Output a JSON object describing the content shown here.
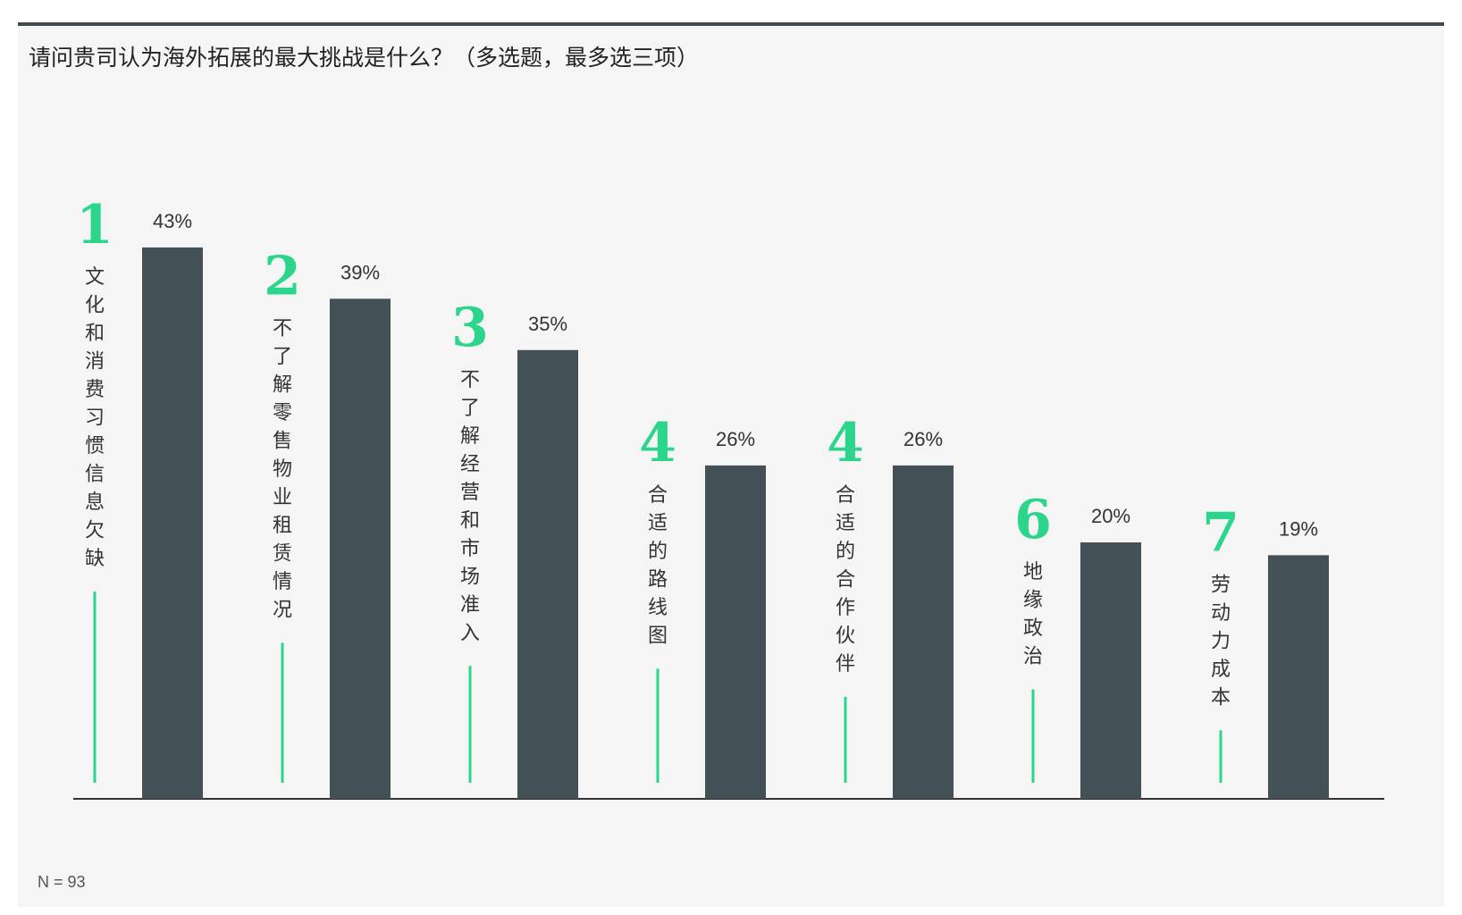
{
  "title": "请问贵司认为海外拓展的最大挑战是什么？（多选题，最多选三项）",
  "note": "N = 93",
  "colors": {
    "bar": "#435055",
    "accent": "#2bd68c",
    "background": "#f5f5f5",
    "top_rule": "#3f4a4f"
  },
  "chart_data": {
    "type": "bar",
    "title": "请问贵司认为海外拓展的最大挑战是什么？（多选题，最多选三项）",
    "categories": [
      "文化和消费习惯信息欠缺",
      "不了解零售物业租赁情况",
      "不了解经营和市场准入",
      "合适的路线图",
      "合适的合作伙伴",
      "地缘政治",
      "劳动力成本"
    ],
    "ranks": [
      "1",
      "2",
      "3",
      "4",
      "4",
      "6",
      "7"
    ],
    "values": [
      43,
      39,
      35,
      26,
      26,
      20,
      19
    ],
    "value_labels": [
      "43%",
      "39%",
      "35%",
      "26%",
      "26%",
      "20%",
      "19%"
    ],
    "unit": "%",
    "ylim": [
      0,
      50
    ],
    "grid": false,
    "legend": "none"
  }
}
